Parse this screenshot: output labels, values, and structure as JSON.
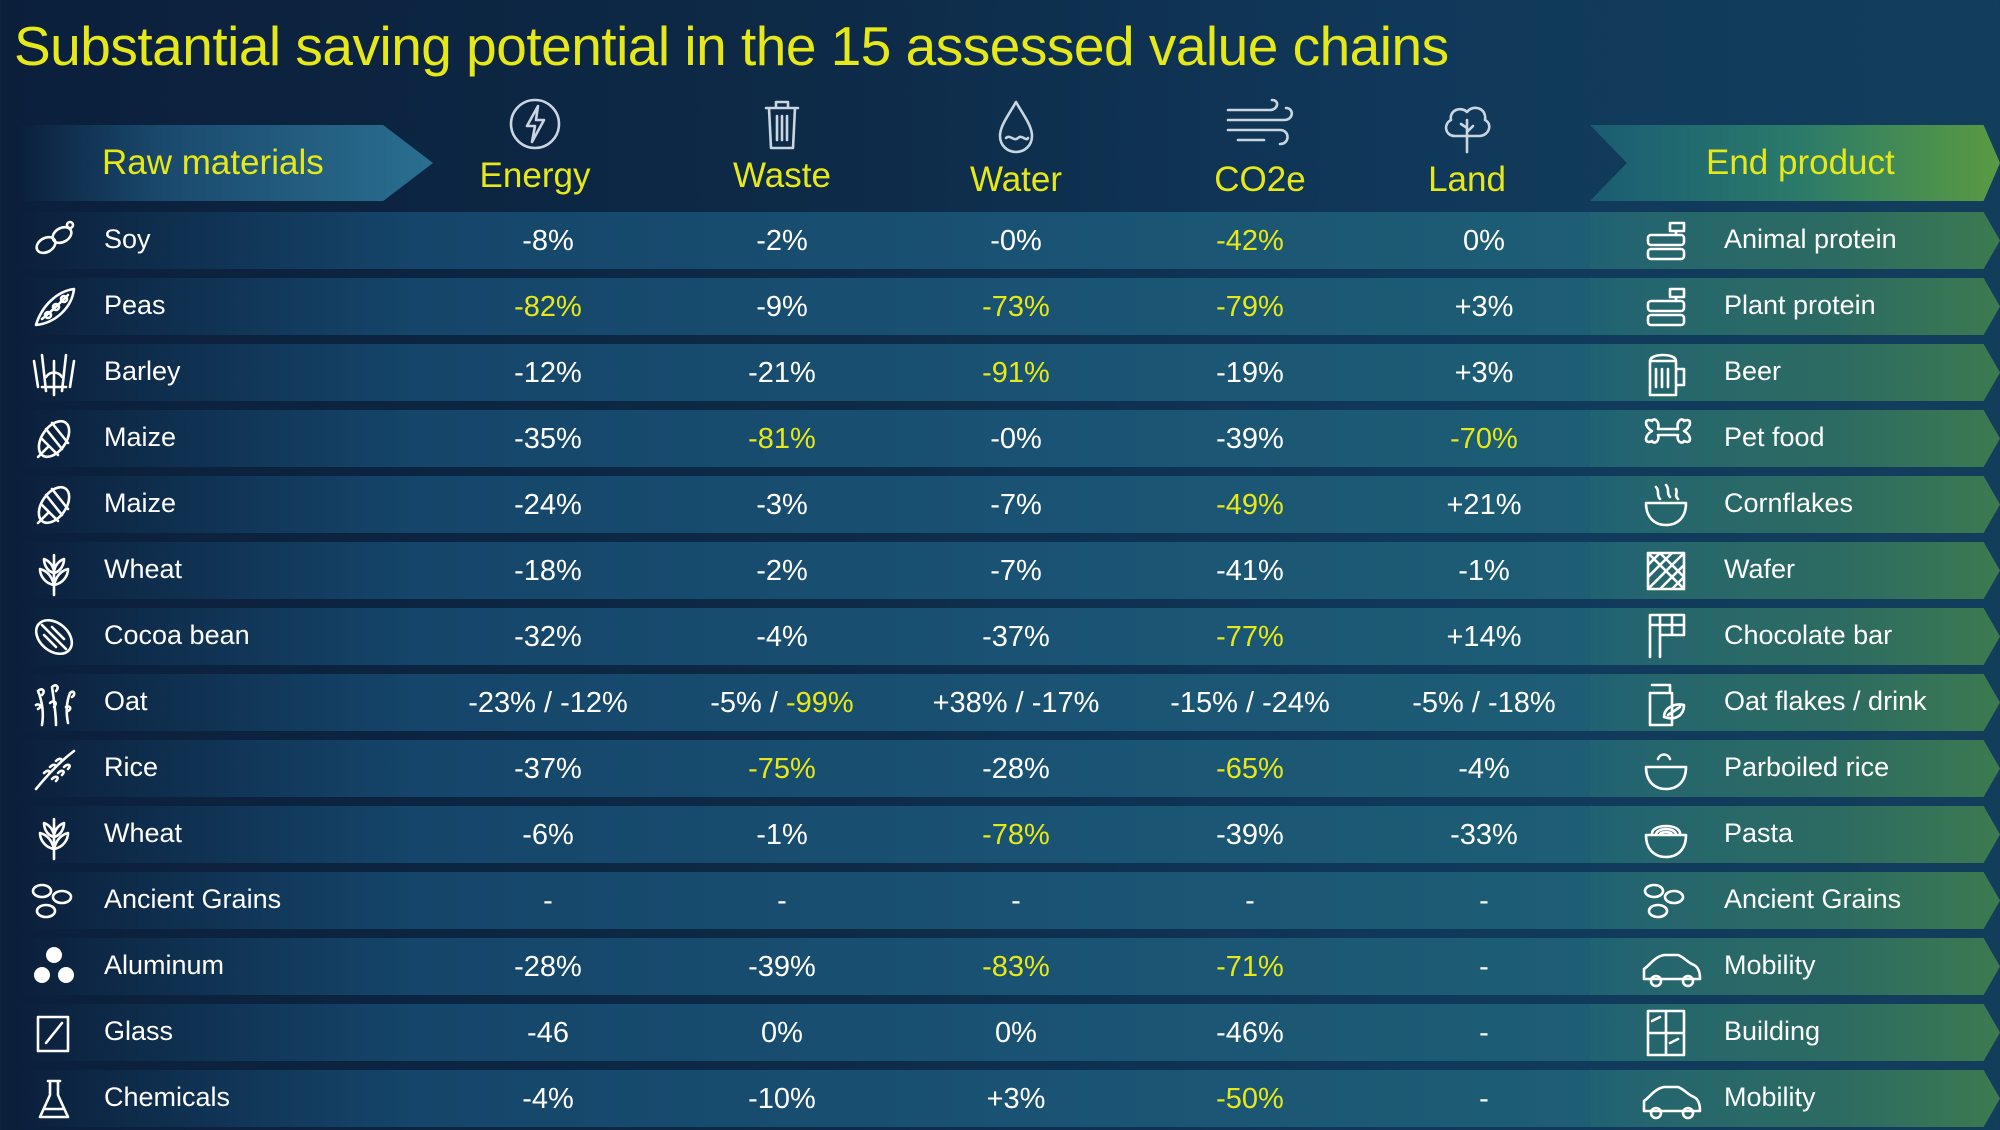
{
  "title": "Substantial saving potential in the 15 assessed value chains",
  "header": {
    "raw_materials": "Raw materials",
    "end_product": "End product",
    "columns": [
      "Energy",
      "Waste",
      "Water",
      "CO2e",
      "Land"
    ]
  },
  "colors": {
    "highlight": "#e6e817",
    "text": "#ffffff",
    "bg_dark": "#0b1f3b"
  },
  "rows": [
    {
      "raw": "Soy",
      "end": "Animal protein",
      "vals": [
        [
          "-8%"
        ],
        [
          "-2%"
        ],
        [
          "-0%"
        ],
        [
          {
            "t": "-42%",
            "hl": true
          }
        ],
        [
          "0%"
        ]
      ]
    },
    {
      "raw": "Peas",
      "end": "Plant protein",
      "vals": [
        [
          {
            "t": "-82%",
            "hl": true
          }
        ],
        [
          "-9%"
        ],
        [
          {
            "t": "-73%",
            "hl": true
          }
        ],
        [
          {
            "t": "-79%",
            "hl": true
          }
        ],
        [
          "+3%"
        ]
      ]
    },
    {
      "raw": "Barley",
      "end": "Beer",
      "vals": [
        [
          "-12%"
        ],
        [
          "-21%"
        ],
        [
          {
            "t": "-91%",
            "hl": true
          }
        ],
        [
          "-19%"
        ],
        [
          "+3%"
        ]
      ]
    },
    {
      "raw": "Maize",
      "end": "Pet food",
      "vals": [
        [
          "-35%"
        ],
        [
          {
            "t": "-81%",
            "hl": true
          }
        ],
        [
          "-0%"
        ],
        [
          "-39%"
        ],
        [
          {
            "t": "-70%",
            "hl": true
          }
        ]
      ]
    },
    {
      "raw": "Maize",
      "end": "Cornflakes",
      "vals": [
        [
          "-24%"
        ],
        [
          "-3%"
        ],
        [
          "-7%"
        ],
        [
          {
            "t": "-49%",
            "hl": true
          }
        ],
        [
          "+21%"
        ]
      ]
    },
    {
      "raw": "Wheat",
      "end": "Wafer",
      "vals": [
        [
          "-18%"
        ],
        [
          "-2%"
        ],
        [
          "-7%"
        ],
        [
          "-41%"
        ],
        [
          "-1%"
        ]
      ]
    },
    {
      "raw": "Cocoa bean",
      "end": "Chocolate bar",
      "vals": [
        [
          "-32%"
        ],
        [
          "-4%"
        ],
        [
          "-37%"
        ],
        [
          {
            "t": "-77%",
            "hl": true
          }
        ],
        [
          "+14%"
        ]
      ]
    },
    {
      "raw": "Oat",
      "end": "Oat flakes / drink",
      "vals": [
        [
          "-23% / -12%"
        ],
        [
          "-5% / ",
          {
            "t": "-99%",
            "hl": true
          }
        ],
        [
          "+38% / -17%"
        ],
        [
          "-15% / -24%"
        ],
        [
          "-5% / -18%"
        ]
      ]
    },
    {
      "raw": "Rice",
      "end": "Parboiled rice",
      "vals": [
        [
          "-37%"
        ],
        [
          {
            "t": "-75%",
            "hl": true
          }
        ],
        [
          "-28%"
        ],
        [
          {
            "t": "-65%",
            "hl": true
          }
        ],
        [
          "-4%"
        ]
      ]
    },
    {
      "raw": "Wheat",
      "end": "Pasta",
      "vals": [
        [
          "-6%"
        ],
        [
          "-1%"
        ],
        [
          {
            "t": "-78%",
            "hl": true
          }
        ],
        [
          "-39%"
        ],
        [
          "-33%"
        ]
      ]
    },
    {
      "raw": "Ancient Grains",
      "end": "Ancient Grains",
      "vals": [
        [
          "-"
        ],
        [
          "-"
        ],
        [
          "-"
        ],
        [
          "-"
        ],
        [
          "-"
        ]
      ]
    },
    {
      "raw": "Aluminum",
      "end": "Mobility",
      "vals": [
        [
          "-28%"
        ],
        [
          "-39%"
        ],
        [
          {
            "t": "-83%",
            "hl": true
          }
        ],
        [
          {
            "t": "-71%",
            "hl": true
          }
        ],
        [
          "-"
        ]
      ]
    },
    {
      "raw": "Glass",
      "end": "Building",
      "vals": [
        [
          "-46"
        ],
        [
          "0%"
        ],
        [
          "0%"
        ],
        [
          "-46%"
        ],
        [
          "-"
        ]
      ]
    },
    {
      "raw": "Chemicals",
      "end": "Mobility",
      "vals": [
        [
          "-4%"
        ],
        [
          "-10%"
        ],
        [
          "+3%"
        ],
        [
          {
            "t": "-50%",
            "hl": true
          }
        ],
        [
          "-"
        ]
      ]
    }
  ]
}
